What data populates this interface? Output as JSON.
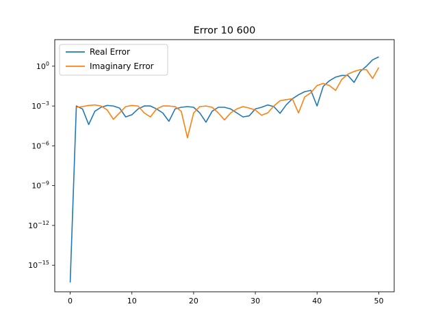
{
  "chart_data": {
    "type": "line",
    "title": "Error 10 600",
    "xlabel": "",
    "ylabel": "",
    "yscale": "log",
    "xlim": [
      -2.5,
      52.5
    ],
    "ylim": [
      1e-17,
      100.0
    ],
    "x_ticks": [
      0,
      10,
      20,
      30,
      40,
      50
    ],
    "x_tick_labels": [
      "0",
      "10",
      "20",
      "30",
      "40",
      "50"
    ],
    "y_ticks": [
      1e-15,
      1e-12,
      1e-09,
      1e-06,
      0.001,
      1
    ],
    "y_tick_labels": [
      {
        "base": "10",
        "exp": "−15"
      },
      {
        "base": "10",
        "exp": "−12"
      },
      {
        "base": "10",
        "exp": "−9"
      },
      {
        "base": "10",
        "exp": "−6"
      },
      {
        "base": "10",
        "exp": "−3"
      },
      {
        "base": "10",
        "exp": "0"
      }
    ],
    "grid": false,
    "legend_position": "upper-left",
    "x": [
      0,
      1,
      2,
      3,
      4,
      5,
      6,
      7,
      8,
      9,
      10,
      11,
      12,
      13,
      14,
      15,
      16,
      17,
      18,
      19,
      20,
      21,
      22,
      23,
      24,
      25,
      26,
      27,
      28,
      29,
      30,
      31,
      32,
      33,
      34,
      35,
      36,
      37,
      38,
      39,
      40,
      41,
      42,
      43,
      44,
      45,
      46,
      47,
      48,
      49,
      50
    ],
    "series": [
      {
        "name": "Real Error",
        "color": "#1f77b4",
        "values": [
          5e-17,
          0.001,
          0.0006,
          4e-05,
          0.0004,
          0.0008,
          0.0011,
          0.001,
          0.0007,
          0.00015,
          0.00022,
          0.0006,
          0.001,
          0.001,
          0.0006,
          0.0003,
          7e-05,
          0.0006,
          0.0008,
          0.0009,
          0.0008,
          0.0003,
          6e-05,
          0.0004,
          0.0008,
          0.0008,
          0.0006,
          0.0003,
          0.00015,
          0.00018,
          0.0006,
          0.0008,
          0.0012,
          0.0009,
          0.00028,
          0.0012,
          0.0035,
          0.007,
          0.012,
          0.015,
          0.001,
          0.03,
          0.08,
          0.15,
          0.2,
          0.2,
          0.06,
          0.4,
          1.0,
          3.0,
          5.0
        ]
      },
      {
        "name": "Imaginary Error",
        "color": "#ff7f0e",
        "values": [
          null,
          0.0008,
          0.0009,
          0.0011,
          0.0012,
          0.001,
          0.0005,
          0.0001,
          0.0003,
          0.0009,
          0.0011,
          0.001,
          0.0003,
          0.00015,
          0.0006,
          0.001,
          0.001,
          0.0009,
          0.0004,
          4e-06,
          0.0003,
          0.0009,
          0.001,
          0.0008,
          0.0003,
          9e-05,
          0.0003,
          0.0006,
          0.0009,
          0.0007,
          0.0005,
          0.0002,
          0.0003,
          0.001,
          0.0025,
          0.003,
          0.0035,
          0.0003,
          0.0048,
          0.01,
          0.035,
          0.05,
          0.035,
          0.015,
          0.1,
          0.25,
          0.4,
          0.55,
          0.55,
          0.12,
          0.8
        ]
      }
    ]
  }
}
